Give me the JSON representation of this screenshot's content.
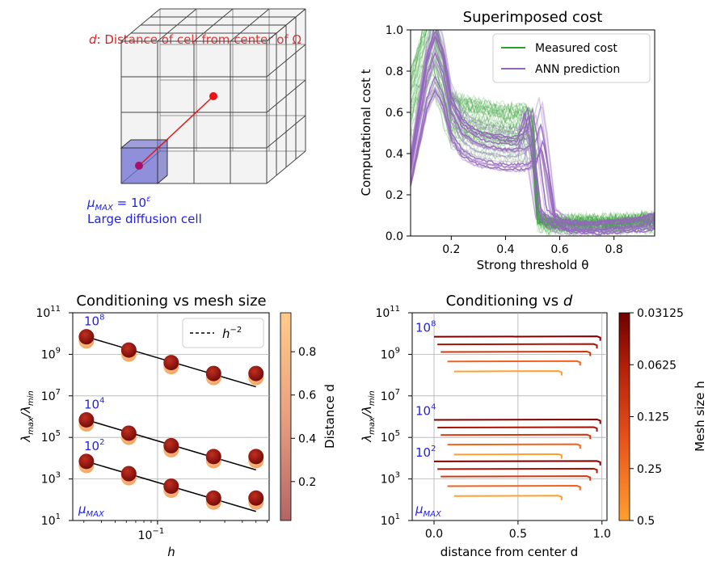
{
  "colors": {
    "measured": "#2ca02c",
    "ann": "#9467bd",
    "label_blue": "#1f1fe6",
    "label_red": "#e41a1c",
    "distance_cmap_low": "#b46468",
    "distance_cmap_high": "#ffcc8a",
    "mesh_cmap_low": "#7f0000",
    "mesh_cmap_high": "#ffa030"
  },
  "diagram": {
    "caption": "d: Distance of cell from center of Ω",
    "caption_var": "d",
    "caption_rest": ": Distance of cell from center of Ω",
    "mu_text": "μ",
    "mu_sub": "MAX",
    "mu_eq": " = 10",
    "mu_exp": "ε",
    "large_cell": "Large diffusion cell"
  },
  "chart_data": [
    {
      "type": "line",
      "title": "Superimposed cost",
      "xlabel": "Strong threshold θ",
      "ylabel": "Computational cost t",
      "xlim": [
        0.05,
        0.95
      ],
      "ylim": [
        0.0,
        1.0
      ],
      "xticks": [
        "0.2",
        "0.4",
        "0.6",
        "0.8"
      ],
      "yticks": [
        "0.0",
        "0.2",
        "0.4",
        "0.6",
        "0.8",
        "1.0"
      ],
      "legend": {
        "position": "top-right",
        "entries": [
          "Measured cost",
          "ANN prediction"
        ]
      },
      "series": [
        {
          "name": "Measured cost",
          "x": [
            0.05,
            0.08,
            0.11,
            0.13,
            0.15,
            0.18,
            0.2,
            0.24,
            0.28,
            0.32,
            0.36,
            0.4,
            0.44,
            0.48,
            0.5,
            0.52,
            0.56,
            0.62,
            0.7,
            0.8,
            0.9,
            0.95
          ],
          "values": [
            0.66,
            0.78,
            0.88,
            0.96,
            0.85,
            0.7,
            0.58,
            0.56,
            0.55,
            0.54,
            0.53,
            0.52,
            0.52,
            0.52,
            0.5,
            0.08,
            0.06,
            0.06,
            0.06,
            0.06,
            0.07,
            0.07
          ]
        },
        {
          "name": "ANN prediction",
          "x": [
            0.05,
            0.08,
            0.11,
            0.14,
            0.17,
            0.2,
            0.24,
            0.28,
            0.32,
            0.36,
            0.4,
            0.44,
            0.48,
            0.5,
            0.52,
            0.55,
            0.6,
            0.7,
            0.8,
            0.9,
            0.95
          ],
          "values": [
            0.32,
            0.55,
            0.78,
            0.9,
            0.8,
            0.6,
            0.5,
            0.46,
            0.44,
            0.43,
            0.42,
            0.42,
            0.45,
            0.55,
            0.4,
            0.1,
            0.05,
            0.04,
            0.05,
            0.06,
            0.08
          ]
        }
      ]
    },
    {
      "type": "scatter",
      "title": "Conditioning vs mesh size",
      "xlabel": "h",
      "ylabel": "λmax/λmin",
      "ylabel_main": "λ",
      "ylabel_sub1": "max",
      "ylabel_sep": "/λ",
      "ylabel_sub2": "min",
      "xscale": "log",
      "yscale": "log",
      "xlim": [
        0.025,
        0.62
      ],
      "ylim": [
        10,
        100000000000.0
      ],
      "xtick_label": "10",
      "xtick_exp": "−1",
      "ytick_exps": [
        "1",
        "3",
        "5",
        "7",
        "9",
        "11"
      ],
      "ytick_base": "10",
      "legend": {
        "position": "top-right",
        "entries": [
          "h^-2"
        ],
        "text": "h",
        "sup": "−2"
      },
      "h": [
        0.03125,
        0.0625,
        0.125,
        0.25,
        0.5
      ],
      "groups": [
        {
          "mu_label": "10",
          "mu_exp": "8",
          "values": [
            7000000000.0,
            1600000000.0,
            400000000.0,
            120000000.0,
            120000000.0
          ]
        },
        {
          "mu_label": "10",
          "mu_exp": "4",
          "values": [
            700000.0,
            160000.0,
            40000.0,
            12000.0,
            12000.0
          ]
        },
        {
          "mu_label": "10",
          "mu_exp": "2",
          "values": [
            7000.0,
            1800.0,
            450.0,
            120.0,
            120.0
          ]
        }
      ],
      "mu_axis_label": "μ",
      "mu_axis_sub": "MAX",
      "colorbar": {
        "label": "Distance d",
        "ticks": [
          "0.2",
          "0.4",
          "0.6",
          "0.8"
        ]
      }
    },
    {
      "type": "line",
      "title_prefix": "Conditioning vs ",
      "title_var": "d",
      "xlabel": "distance from center d",
      "ylabel": "λmax/λmin",
      "yscale": "log",
      "xlim": [
        -0.13,
        1.03
      ],
      "ylim": [
        10,
        100000000000.0
      ],
      "xticks": [
        "0.0",
        "0.5",
        "1.0"
      ],
      "groups": [
        {
          "mu_label": "10",
          "mu_exp": "8",
          "series": [
            {
              "h": 0.03125,
              "x": [
                0.0,
                0.99
              ],
              "value": 7000000000.0
            },
            {
              "h": 0.0625,
              "x": [
                0.02,
                0.97
              ],
              "value": 3000000000.0
            },
            {
              "h": 0.125,
              "x": [
                0.04,
                0.93
              ],
              "value": 1300000000.0
            },
            {
              "h": 0.25,
              "x": [
                0.08,
                0.87
              ],
              "value": 450000000.0
            },
            {
              "h": 0.5,
              "x": [
                0.12,
                0.76
              ],
              "value": 150000000.0
            }
          ]
        },
        {
          "mu_label": "10",
          "mu_exp": "4",
          "series": [
            {
              "h": 0.03125,
              "x": [
                0.0,
                0.99
              ],
              "value": 700000.0
            },
            {
              "h": 0.0625,
              "x": [
                0.02,
                0.97
              ],
              "value": 300000.0
            },
            {
              "h": 0.125,
              "x": [
                0.04,
                0.93
              ],
              "value": 130000.0
            },
            {
              "h": 0.25,
              "x": [
                0.08,
                0.87
              ],
              "value": 45000.0
            },
            {
              "h": 0.5,
              "x": [
                0.12,
                0.76
              ],
              "value": 15000.0
            }
          ]
        },
        {
          "mu_label": "10",
          "mu_exp": "2",
          "series": [
            {
              "h": 0.03125,
              "x": [
                0.0,
                0.99
              ],
              "value": 7000.0
            },
            {
              "h": 0.0625,
              "x": [
                0.02,
                0.97
              ],
              "value": 3000.0
            },
            {
              "h": 0.125,
              "x": [
                0.04,
                0.93
              ],
              "value": 1300.0
            },
            {
              "h": 0.25,
              "x": [
                0.08,
                0.87
              ],
              "value": 450.0
            },
            {
              "h": 0.5,
              "x": [
                0.12,
                0.76
              ],
              "value": 150.0
            }
          ]
        }
      ],
      "colorbar": {
        "label": "Mesh size h",
        "ticks": [
          "0.03125",
          "0.0625",
          "0.125",
          "0.25",
          "0.5"
        ]
      }
    }
  ]
}
